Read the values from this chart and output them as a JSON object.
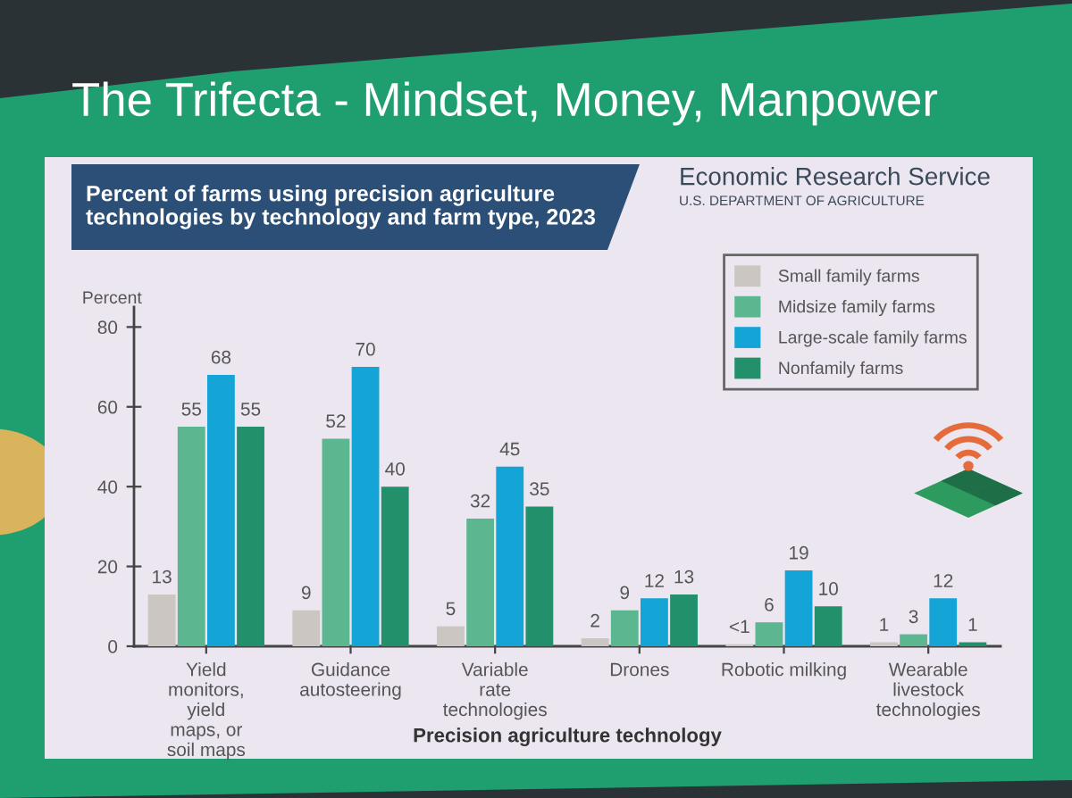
{
  "chart_data": {
    "type": "bar",
    "title": "The Trifecta - Mindset, Money, Manpower",
    "subtitle": "Percent of farms using precision agriculture\ntechnologies by technology and farm type, 2023",
    "xlabel": "Precision agriculture technology",
    "ylabel": "Percent",
    "annotations": [
      "Economic Research Service",
      "U.S. DEPARTMENT OF AGRICULTURE"
    ],
    "categories": [
      "Yield\nmonitors,\nyield\nmaps, or\nsoil maps",
      "Guidance\nautosteering",
      "Variable\nrate\ntechnologies",
      "Drones",
      "Robotic milking",
      "Wearable\nlivestock\ntechnologies"
    ],
    "series": [
      {
        "name": "Small family farms",
        "color": "#cbc6c2",
        "values": [
          13,
          9,
          5,
          2,
          0.5,
          1
        ],
        "value_labels": [
          "13",
          "9",
          "5",
          "2",
          "<1",
          "1"
        ]
      },
      {
        "name": "Midsize family farms",
        "color": "#5cb791",
        "values": [
          55,
          52,
          32,
          9,
          6,
          3
        ],
        "value_labels": [
          "55",
          "52",
          "32",
          "9",
          "6",
          "3"
        ]
      },
      {
        "name": "Large-scale family farms",
        "color": "#14a5d6",
        "values": [
          68,
          70,
          45,
          12,
          19,
          12
        ],
        "value_labels": [
          "68",
          "70",
          "45",
          "12",
          "19",
          "12"
        ]
      },
      {
        "name": "Nonfamily farms",
        "color": "#23906c",
        "values": [
          55,
          40,
          35,
          13,
          10,
          1
        ],
        "value_labels": [
          "55",
          "40",
          "35",
          "13",
          "10",
          "1"
        ]
      }
    ],
    "ylim": [
      0,
      85
    ],
    "yticks": [
      0,
      20,
      40,
      60,
      80
    ],
    "legend": "top right"
  }
}
